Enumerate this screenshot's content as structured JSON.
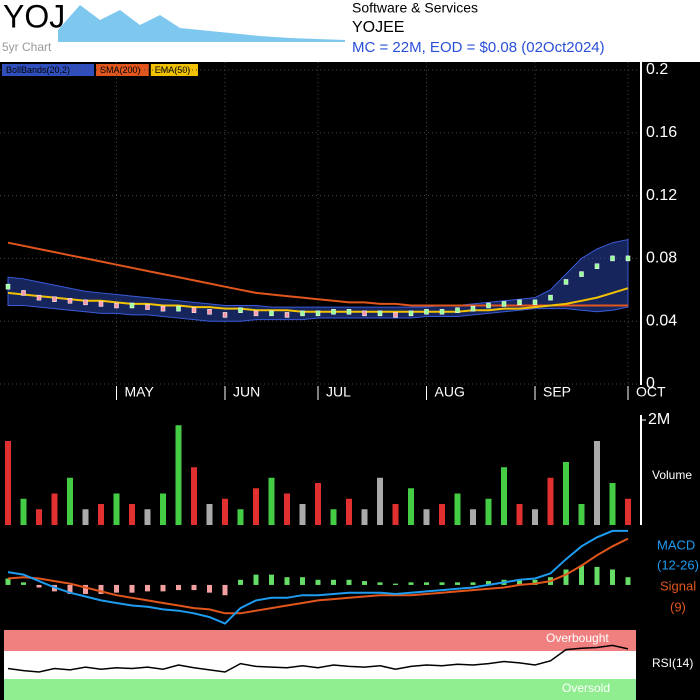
{
  "chart_data": {
    "type": "stock",
    "ticker": "YOJ",
    "mini_label": "5yr Chart",
    "sector": "Software & Services",
    "name": "YOJEE",
    "summary": "MC = 22M, EOD = $0.08 (02Oct2024)",
    "legend": [
      {
        "name": "BollBands(20,2)",
        "color": "#2f4fbf"
      },
      {
        "name": "SMA(200)",
        "color": "#e0561c"
      },
      {
        "name": "EMA(50)",
        "color": "#f2c200"
      }
    ],
    "categories": [
      null,
      null,
      null,
      null,
      null,
      null,
      null,
      "MAY",
      null,
      null,
      null,
      null,
      null,
      null,
      "JUN",
      null,
      null,
      null,
      null,
      null,
      "JUL",
      null,
      null,
      null,
      null,
      null,
      null,
      "AUG",
      null,
      null,
      null,
      null,
      null,
      null,
      "SEP",
      null,
      null,
      null,
      null,
      null,
      "OCT"
    ],
    "ylim": [
      0,
      0.2
    ],
    "yticks": [
      0,
      0.04,
      0.08,
      0.12,
      0.16,
      0.2
    ],
    "close": [
      0.062,
      0.058,
      0.055,
      0.054,
      0.053,
      0.052,
      0.051,
      0.05,
      0.05,
      0.049,
      0.048,
      0.048,
      0.047,
      0.046,
      0.044,
      0.047,
      0.045,
      0.045,
      0.044,
      0.045,
      0.045,
      0.046,
      0.046,
      0.045,
      0.045,
      0.044,
      0.045,
      0.046,
      0.046,
      0.047,
      0.048,
      0.05,
      0.051,
      0.052,
      0.052,
      0.055,
      0.065,
      0.07,
      0.075,
      0.08,
      0.08
    ],
    "sma200": [
      0.09,
      0.088,
      0.086,
      0.084,
      0.082,
      0.08,
      0.078,
      0.076,
      0.074,
      0.072,
      0.07,
      0.068,
      0.066,
      0.064,
      0.062,
      0.06,
      0.058,
      0.057,
      0.056,
      0.055,
      0.054,
      0.053,
      0.052,
      0.052,
      0.051,
      0.051,
      0.05,
      0.05,
      0.05,
      0.05,
      0.05,
      0.05,
      0.05,
      0.05,
      0.05,
      0.05,
      0.05,
      0.05,
      0.05,
      0.05,
      0.05
    ],
    "ema50": [
      0.058,
      0.057,
      0.056,
      0.055,
      0.054,
      0.053,
      0.053,
      0.052,
      0.051,
      0.051,
      0.05,
      0.05,
      0.049,
      0.049,
      0.048,
      0.048,
      0.047,
      0.047,
      0.047,
      0.046,
      0.046,
      0.046,
      0.046,
      0.046,
      0.046,
      0.046,
      0.046,
      0.046,
      0.046,
      0.046,
      0.047,
      0.047,
      0.048,
      0.048,
      0.049,
      0.05,
      0.051,
      0.053,
      0.055,
      0.058,
      0.061
    ],
    "boll_upper": [
      0.068,
      0.067,
      0.065,
      0.063,
      0.061,
      0.059,
      0.058,
      0.057,
      0.056,
      0.055,
      0.054,
      0.053,
      0.052,
      0.051,
      0.05,
      0.05,
      0.05,
      0.049,
      0.049,
      0.049,
      0.049,
      0.049,
      0.049,
      0.049,
      0.049,
      0.049,
      0.049,
      0.049,
      0.05,
      0.05,
      0.051,
      0.052,
      0.053,
      0.054,
      0.055,
      0.06,
      0.07,
      0.08,
      0.086,
      0.09,
      0.092
    ],
    "boll_lower": [
      0.05,
      0.05,
      0.049,
      0.048,
      0.047,
      0.046,
      0.045,
      0.045,
      0.044,
      0.044,
      0.043,
      0.042,
      0.041,
      0.04,
      0.04,
      0.04,
      0.041,
      0.041,
      0.041,
      0.041,
      0.042,
      0.042,
      0.042,
      0.042,
      0.042,
      0.042,
      0.042,
      0.043,
      0.043,
      0.043,
      0.044,
      0.045,
      0.046,
      0.047,
      0.048,
      0.048,
      0.048,
      0.047,
      0.046,
      0.047,
      0.049
    ],
    "volume": {
      "label": "Volume",
      "ylim": [
        0,
        2000000
      ],
      "yticks": [
        {
          "value": 2000000,
          "label": "2M"
        }
      ],
      "values": [
        1600000,
        500000,
        300000,
        600000,
        900000,
        300000,
        400000,
        600000,
        400000,
        300000,
        600000,
        1900000,
        1100000,
        400000,
        500000,
        300000,
        700000,
        900000,
        600000,
        400000,
        800000,
        300000,
        500000,
        300000,
        900000,
        400000,
        700000,
        300000,
        400000,
        600000,
        300000,
        500000,
        1100000,
        400000,
        300000,
        900000,
        1200000,
        400000,
        1600000,
        800000,
        500000
      ],
      "colors": [
        "#e03030",
        "#44cc44",
        "#e03030",
        "#e03030",
        "#44cc44",
        "#aaaaaa",
        "#e03030",
        "#44cc44",
        "#e03030",
        "#aaaaaa",
        "#44cc44",
        "#44cc44",
        "#e03030",
        "#aaaaaa",
        "#e03030",
        "#44cc44",
        "#e03030",
        "#44cc44",
        "#e03030",
        "#aaaaaa",
        "#e03030",
        "#44cc44",
        "#e03030",
        "#aaaaaa",
        "#aaaaaa",
        "#e03030",
        "#44cc44",
        "#aaaaaa",
        "#e03030",
        "#44cc44",
        "#aaaaaa",
        "#44cc44",
        "#44cc44",
        "#e03030",
        "#aaaaaa",
        "#e03030",
        "#44cc44",
        "#44cc44",
        "#aaaaaa",
        "#44cc44",
        "#e03030"
      ]
    },
    "macd": {
      "label": "MACD",
      "params": "(12-26)",
      "signal_label": "Signal",
      "signal_params": "(9)",
      "ylim": [
        -0.0035,
        0.0045
      ],
      "color": "#1e9cf0",
      "signal_color": "#e0561c",
      "values": [
        0.001,
        0.0008,
        0.0003,
        -0.0002,
        -0.0006,
        -0.0009,
        -0.0012,
        -0.0014,
        -0.0016,
        -0.0017,
        -0.0019,
        -0.002,
        -0.0022,
        -0.0025,
        -0.003,
        -0.0018,
        -0.0012,
        -0.001,
        -0.001,
        -0.0008,
        -0.0008,
        -0.0007,
        -0.0006,
        -0.0006,
        -0.0006,
        -0.0007,
        -0.0006,
        -0.0005,
        -0.0004,
        -0.0003,
        -0.0002,
        0.0,
        0.0002,
        0.0004,
        0.0005,
        0.0009,
        0.002,
        0.003,
        0.0037,
        0.0042,
        0.0042
      ],
      "signal": [
        0.0005,
        0.0006,
        0.0005,
        0.0003,
        0.0001,
        -0.0002,
        -0.0005,
        -0.0008,
        -0.001,
        -0.0012,
        -0.0014,
        -0.0016,
        -0.0018,
        -0.0019,
        -0.0022,
        -0.0022,
        -0.002,
        -0.0018,
        -0.0016,
        -0.0014,
        -0.0012,
        -0.0011,
        -0.001,
        -0.0009,
        -0.0008,
        -0.0008,
        -0.0008,
        -0.0007,
        -0.0006,
        -0.0005,
        -0.0004,
        -0.0003,
        -0.0002,
        0.0,
        0.0001,
        0.0003,
        0.0008,
        0.0015,
        0.0023,
        0.003,
        0.0036
      ],
      "histogram": [
        0.0005,
        0.0002,
        -0.0002,
        -0.0005,
        -0.0007,
        -0.0007,
        -0.0007,
        -0.0006,
        -0.0006,
        -0.0005,
        -0.0005,
        -0.0004,
        -0.0004,
        -0.0006,
        -0.0008,
        0.0004,
        0.0008,
        0.0008,
        0.0006,
        0.0006,
        0.0004,
        0.0004,
        0.0004,
        0.0003,
        0.0002,
        0.0001,
        0.0002,
        0.0002,
        0.0002,
        0.0002,
        0.0002,
        0.0003,
        0.0004,
        0.0004,
        0.0004,
        0.0006,
        0.0012,
        0.0015,
        0.0014,
        0.0012,
        0.0006
      ]
    },
    "rsi": {
      "label": "RSI(14)",
      "ylim": [
        0,
        100
      ],
      "overbought": 70,
      "oversold": 30,
      "overbought_label": "Overbought",
      "oversold_label": "Oversold",
      "values": [
        45,
        42,
        40,
        45,
        43,
        47,
        44,
        46,
        45,
        47,
        44,
        50,
        46,
        43,
        40,
        52,
        48,
        47,
        46,
        49,
        46,
        50,
        48,
        47,
        49,
        44,
        48,
        50,
        49,
        51,
        50,
        52,
        55,
        53,
        50,
        56,
        72,
        74,
        75,
        78,
        73
      ]
    }
  }
}
